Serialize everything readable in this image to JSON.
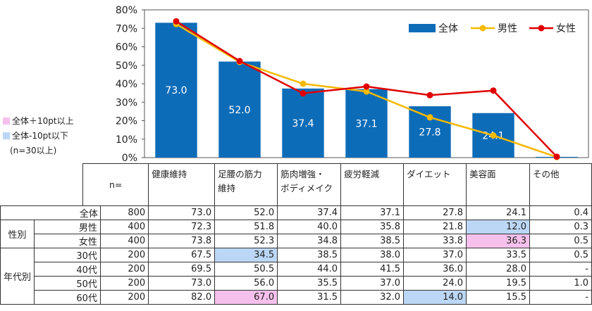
{
  "chart_data": {
    "type": "bar",
    "categories": [
      "健康維持",
      "足腰の筋力維持",
      "筋肉増強・ボディメイク",
      "疲労軽減",
      "ダイエット",
      "美容面",
      "その他"
    ],
    "series": [
      {
        "name": "全体",
        "kind": "bar",
        "color": "#0d6cb8",
        "values": [
          73.0,
          52.0,
          37.4,
          37.1,
          27.8,
          24.1,
          0.4
        ]
      },
      {
        "name": "男性",
        "kind": "line",
        "color": "#f5b900",
        "values": [
          72.3,
          51.8,
          40.0,
          35.8,
          21.8,
          12.0,
          0.3
        ]
      },
      {
        "name": "女性",
        "kind": "line",
        "color": "#e00000",
        "values": [
          73.8,
          52.3,
          34.8,
          38.5,
          33.8,
          36.3,
          0.5
        ]
      }
    ],
    "data_labels": [
      "73.0",
      "52.0",
      "37.4",
      "37.1",
      "27.8",
      "24.1",
      ""
    ],
    "y_ticks": [
      "0%",
      "10%",
      "20%",
      "30%",
      "40%",
      "50%",
      "60%",
      "70%",
      "80%"
    ],
    "ylim": [
      0,
      80
    ],
    "legend_position": "top-right"
  },
  "notes": {
    "plus": {
      "text": "全体＋10pt以上",
      "color": "#f5c0ec"
    },
    "minus": {
      "text": "全体-10pt以下",
      "color": "#bcd7f5"
    },
    "n_note": "(n=30以上)"
  },
  "table": {
    "n_header": "n=",
    "headers": [
      [
        "健康維持"
      ],
      [
        "足腰の筋力",
        "維持"
      ],
      [
        "筋肉増強・",
        "ボディメイク"
      ],
      [
        "疲労軽減"
      ],
      [
        "ダイエット"
      ],
      [
        "美容面"
      ],
      [
        "その他"
      ]
    ],
    "groups": {
      "gender": "性別",
      "age": "年代別"
    },
    "rows": [
      {
        "label": "全体",
        "n": "800",
        "values": [
          "73.0",
          "52.0",
          "37.4",
          "37.1",
          "27.8",
          "24.1",
          "0.4"
        ],
        "hl": [
          "",
          "",
          "",
          "",
          "",
          "",
          ""
        ]
      },
      {
        "label": "男性",
        "n": "400",
        "values": [
          "72.3",
          "51.8",
          "40.0",
          "35.8",
          "21.8",
          "12.0",
          "0.3"
        ],
        "hl": [
          "",
          "",
          "",
          "",
          "",
          "minus",
          ""
        ]
      },
      {
        "label": "女性",
        "n": "400",
        "values": [
          "73.8",
          "52.3",
          "34.8",
          "38.5",
          "33.8",
          "36.3",
          "0.5"
        ],
        "hl": [
          "",
          "",
          "",
          "",
          "",
          "plus",
          ""
        ]
      },
      {
        "label": "30代",
        "n": "200",
        "values": [
          "67.5",
          "34.5",
          "38.5",
          "38.0",
          "37.0",
          "33.5",
          "0.5"
        ],
        "hl": [
          "",
          "minus",
          "",
          "",
          "",
          "",
          ""
        ]
      },
      {
        "label": "40代",
        "n": "200",
        "values": [
          "69.5",
          "50.5",
          "44.0",
          "41.5",
          "36.0",
          "28.0",
          "-"
        ],
        "hl": [
          "",
          "",
          "",
          "",
          "",
          "",
          ""
        ]
      },
      {
        "label": "50代",
        "n": "200",
        "values": [
          "73.0",
          "56.0",
          "35.5",
          "37.0",
          "24.0",
          "19.5",
          "1.0"
        ],
        "hl": [
          "",
          "",
          "",
          "",
          "",
          "",
          ""
        ]
      },
      {
        "label": "60代",
        "n": "200",
        "values": [
          "82.0",
          "67.0",
          "31.5",
          "32.0",
          "14.0",
          "15.5",
          "-"
        ],
        "hl": [
          "",
          "plus",
          "",
          "",
          "minus",
          "",
          ""
        ]
      }
    ]
  }
}
